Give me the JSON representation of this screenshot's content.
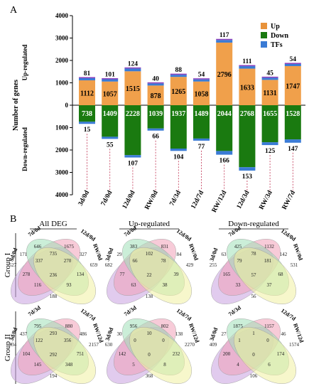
{
  "panel_a_label": "A",
  "panel_b_label": "B",
  "colors": {
    "up": "#f0a04b",
    "up_dark": "#e8923a",
    "down": "#1a7a10",
    "tf": "#3a7bd5",
    "tf_top": "#8a3dbb",
    "venn": [
      "#c8a0e0",
      "#f0a0b8",
      "#a0e0b8",
      "#f0f0a0"
    ]
  },
  "chart_data": {
    "type": "bar",
    "ylabel": "Number of genes",
    "ylabel_up": "Up-regulated",
    "ylabel_down": "Down-regulated",
    "ylim": [
      -4000,
      4000
    ],
    "yticks": [
      "4000",
      "3000",
      "2000",
      "1000",
      "0",
      "1000",
      "2000",
      "3000",
      "4000"
    ],
    "categories": [
      "3d/0d",
      "7d/0d",
      "12d/0d",
      "RW/0d",
      "7d/3d",
      "12d/7d",
      "RW/12d",
      "12d/3d",
      "RW/3d",
      "RW/7d"
    ],
    "series": [
      {
        "name": "Up",
        "values": [
          1112,
          1057,
          1515,
          878,
          1265,
          1058,
          2796,
          1633,
          1131,
          1747
        ]
      },
      {
        "name": "Up TFs",
        "values": [
          81,
          101,
          124,
          40,
          88,
          54,
          117,
          111,
          45,
          54
        ]
      },
      {
        "name": "Down",
        "values": [
          738,
          1409,
          2228,
          1039,
          1937,
          1489,
          2044,
          2768,
          1655,
          1528
        ]
      },
      {
        "name": "Down TFs",
        "values": [
          15,
          55,
          107,
          66,
          104,
          77,
          166,
          153,
          125,
          147
        ]
      }
    ],
    "legend": [
      {
        "name": "Up",
        "color": "#e8923a"
      },
      {
        "name": "Down",
        "color": "#1a7a10"
      },
      {
        "name": "TFs",
        "color": "#3a7bd5"
      }
    ],
    "legend_position": "top-right"
  },
  "venn": {
    "titles": [
      "All DEG",
      "Up-regulated",
      "Down-regulated"
    ],
    "groups": [
      "Group I",
      "Group II"
    ],
    "group1_labels": [
      "3d/0d",
      "7d/0d",
      "12d/0d",
      "RW/0d"
    ],
    "group2_labels": [
      "3d/0d",
      "7d/3d",
      "12d/7d",
      "RW/12d"
    ],
    "diagrams": [
      {
        "numbers": [
          "646",
          "1675",
          "171",
          "735",
          "327",
          "527",
          "337",
          "270",
          "659",
          "278",
          "236",
          "134",
          "116",
          "93",
          "188"
        ]
      },
      {
        "numbers": [
          "383",
          "831",
          "29",
          "102",
          "84",
          "682",
          "66",
          "78",
          "429",
          "77",
          "22",
          "39",
          "63",
          "38",
          "138"
        ]
      },
      {
        "numbers": [
          "425",
          "1132",
          "63",
          "78",
          "142",
          "255",
          "79",
          "181",
          "531",
          "165",
          "57",
          "68",
          "33",
          "37",
          "56"
        ]
      },
      {
        "numbers": [
          "795",
          "880",
          "437",
          "293",
          "486",
          "334",
          "122",
          "356",
          "2157",
          "104",
          "292",
          "751",
          "145",
          "348",
          "194"
        ]
      },
      {
        "numbers": [
          "956",
          "802",
          "30",
          "10",
          "138",
          "630",
          "0",
          "0",
          "2270",
          "142",
          "0",
          "232",
          "5",
          "8",
          "368"
        ]
      },
      {
        "numbers": [
          "1875",
          "1157",
          "27",
          "1",
          "46",
          "409",
          "1",
          "0",
          "1574",
          "200",
          "0",
          "174",
          "4",
          "6",
          "106"
        ]
      }
    ]
  }
}
